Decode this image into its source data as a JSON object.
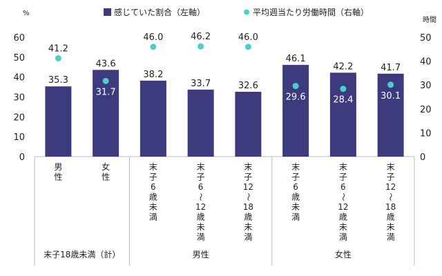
{
  "chart_data": {
    "type": "bar",
    "title": "",
    "left_unit": "%",
    "right_unit": "時間",
    "ylim_left": [
      0,
      60
    ],
    "ylim_right": [
      0,
      50
    ],
    "yticks_left": [
      "0",
      "10",
      "20",
      "30",
      "40",
      "50",
      "60"
    ],
    "yticks_right": [
      "0",
      "10",
      "20",
      "30",
      "40",
      "50"
    ],
    "grid": false,
    "legend_position": "top",
    "categories": [
      "男性",
      "女性",
      "末子6歳未満",
      "末子6〜12歳未満",
      "末子12〜18歳未満",
      "末子6歳未満",
      "末子6〜12歳未満",
      "末子12〜18歳未満"
    ],
    "category_labels": [
      [
        "男",
        "性"
      ],
      [
        "女",
        "性"
      ],
      [
        "末",
        "子",
        "6",
        "歳",
        "未",
        "満"
      ],
      [
        "末",
        "子",
        "6",
        "〜",
        "12",
        "歳",
        "未",
        "満"
      ],
      [
        "末",
        "子",
        "12",
        "〜",
        "18",
        "歳",
        "未",
        "満"
      ],
      [
        "末",
        "子",
        "6",
        "歳",
        "未",
        "満"
      ],
      [
        "末",
        "子",
        "6",
        "〜",
        "12",
        "歳",
        "未",
        "満"
      ],
      [
        "末",
        "子",
        "12",
        "〜",
        "18",
        "歳",
        "未",
        "満"
      ]
    ],
    "groups": [
      {
        "label": "末子18歳未満（計）",
        "span": [
          0,
          1
        ]
      },
      {
        "label": "男性",
        "span": [
          2,
          4
        ]
      },
      {
        "label": "女性",
        "span": [
          5,
          7
        ]
      }
    ],
    "series": [
      {
        "name": "感じていた割合（左軸）",
        "type": "bar",
        "axis": "left",
        "color": "#3d3a7e",
        "values": [
          35.3,
          43.6,
          38.2,
          33.7,
          32.6,
          46.1,
          42.2,
          41.7
        ],
        "labels": [
          "35.3",
          "43.6",
          "38.2",
          "33.7",
          "32.6",
          "46.1",
          "42.2",
          "41.7"
        ]
      },
      {
        "name": "平均週当たり労働時間（右軸）",
        "type": "scatter",
        "axis": "right",
        "color": "#4fcdc8",
        "values": [
          41.2,
          31.7,
          46.0,
          46.2,
          46.0,
          29.6,
          28.4,
          30.1
        ],
        "labels": [
          "41.2",
          "31.7",
          "46.0",
          "46.2",
          "46.0",
          "29.6",
          "28.4",
          "30.1"
        ]
      }
    ]
  }
}
